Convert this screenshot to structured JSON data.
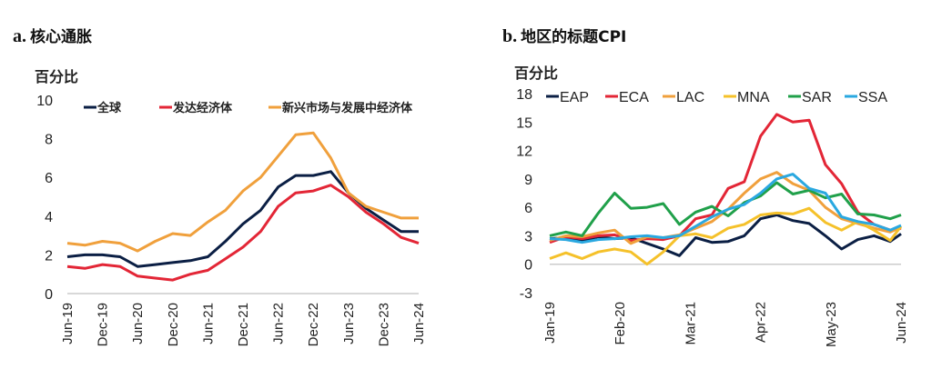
{
  "panels": [
    {
      "letter": "a.",
      "title": "核心通胀"
    },
    {
      "letter": "b.",
      "title": "地区的标题CPI"
    }
  ],
  "chart_data": [
    {
      "type": "line",
      "title": "核心通胀",
      "ylabel": "百分比",
      "ylim": [
        0,
        10
      ],
      "yticks": [
        0,
        2,
        4,
        6,
        8,
        10
      ],
      "xticks": [
        "Jun-19",
        "Dec-19",
        "Jun-20",
        "Dec-20",
        "Jun-21",
        "Dec-21",
        "Jun-22",
        "Dec-22",
        "Jun-23",
        "Dec-23",
        "Jun-24"
      ],
      "x": [
        "Jun-19",
        "Sep-19",
        "Dec-19",
        "Mar-20",
        "Jun-20",
        "Sep-20",
        "Dec-20",
        "Mar-21",
        "Jun-21",
        "Sep-21",
        "Dec-21",
        "Mar-22",
        "Jun-22",
        "Sep-22",
        "Dec-22",
        "Mar-23",
        "Jun-23",
        "Sep-23",
        "Dec-23",
        "Mar-24",
        "Jun-24"
      ],
      "legend": "top",
      "grid": false,
      "series": [
        {
          "name": "全球",
          "color": "#0b1f44",
          "values": [
            1.9,
            2.0,
            2.0,
            1.9,
            1.4,
            1.5,
            1.6,
            1.7,
            1.9,
            2.7,
            3.6,
            4.3,
            5.5,
            6.1,
            6.1,
            6.3,
            5.2,
            4.4,
            3.8,
            3.2,
            3.2
          ]
        },
        {
          "name": "发达经济体",
          "color": "#e32636",
          "values": [
            1.4,
            1.3,
            1.5,
            1.4,
            0.9,
            0.8,
            0.7,
            1.0,
            1.2,
            1.8,
            2.4,
            3.2,
            4.5,
            5.2,
            5.3,
            5.6,
            5.0,
            4.2,
            3.6,
            2.9,
            2.6
          ]
        },
        {
          "name": "新兴市场与发展中经济体",
          "color": "#f0a03c",
          "values": [
            2.6,
            2.5,
            2.7,
            2.6,
            2.2,
            2.7,
            3.1,
            3.0,
            3.7,
            4.3,
            5.3,
            6.0,
            7.1,
            8.2,
            8.3,
            7.0,
            5.2,
            4.5,
            4.2,
            3.9,
            3.9
          ]
        }
      ]
    },
    {
      "type": "line",
      "title": "地区的标题CPI",
      "ylabel": "百分比",
      "ylim": [
        -3,
        18
      ],
      "yticks": [
        -3,
        0,
        3,
        6,
        9,
        12,
        15,
        18
      ],
      "xticks": [
        "Jan-19",
        "Feb-20",
        "Mar-21",
        "Apr-22",
        "May-23",
        "Jun-24"
      ],
      "x": [
        "Jan-19",
        "Apr-19",
        "Jul-19",
        "Oct-19",
        "Jan-20",
        "Apr-20",
        "Jul-20",
        "Oct-20",
        "Jan-21",
        "Apr-21",
        "Jul-21",
        "Oct-21",
        "Jan-22",
        "Apr-22",
        "Jul-22",
        "Oct-22",
        "Jan-23",
        "Apr-23",
        "Jul-23",
        "Oct-23",
        "Jan-24",
        "Apr-24",
        "Jun-24"
      ],
      "legend": "top",
      "grid": false,
      "series": [
        {
          "name": "EAP",
          "color": "#0b1f44",
          "values": [
            2.7,
            2.8,
            2.5,
            2.9,
            2.7,
            2.8,
            2.2,
            1.6,
            0.9,
            2.8,
            2.3,
            2.4,
            3.0,
            4.8,
            5.2,
            4.6,
            4.3,
            3.0,
            1.6,
            2.6,
            3.0,
            2.4,
            3.2
          ]
        },
        {
          "name": "ECA",
          "color": "#e32636",
          "values": [
            2.3,
            2.9,
            2.7,
            3.0,
            3.1,
            2.5,
            2.7,
            2.6,
            3.0,
            4.8,
            5.2,
            8.0,
            8.7,
            13.5,
            15.8,
            15.0,
            15.2,
            10.5,
            8.5,
            5.5,
            4.2,
            3.6,
            3.8
          ]
        },
        {
          "name": "LAC",
          "color": "#f0a03c",
          "values": [
            2.5,
            3.0,
            2.9,
            3.3,
            3.6,
            2.2,
            2.9,
            2.8,
            3.1,
            3.8,
            4.5,
            5.8,
            7.5,
            9.0,
            9.7,
            8.5,
            7.8,
            6.0,
            4.8,
            4.3,
            3.8,
            3.4,
            3.9
          ]
        },
        {
          "name": "MNA",
          "color": "#f5c12a",
          "values": [
            0.6,
            1.2,
            0.6,
            1.3,
            1.6,
            1.3,
            0.0,
            1.3,
            3.0,
            3.2,
            2.8,
            3.8,
            4.2,
            5.2,
            5.4,
            5.3,
            5.9,
            4.4,
            3.6,
            4.5,
            3.6,
            2.5,
            4.0
          ]
        },
        {
          "name": "SAR",
          "color": "#20a04a",
          "values": [
            3.0,
            3.4,
            3.0,
            5.4,
            7.5,
            5.9,
            6.0,
            6.4,
            4.2,
            5.5,
            6.1,
            5.1,
            6.5,
            7.2,
            8.6,
            7.4,
            7.8,
            7.0,
            7.4,
            5.3,
            5.2,
            4.8,
            5.2
          ]
        },
        {
          "name": "SSA",
          "color": "#2aa8e0",
          "values": [
            2.7,
            2.6,
            2.3,
            2.6,
            2.7,
            2.9,
            3.0,
            2.8,
            3.0,
            4.0,
            5.0,
            5.8,
            6.3,
            7.5,
            9.0,
            9.5,
            8.0,
            7.5,
            5.0,
            4.5,
            4.2,
            3.6,
            4.1
          ]
        }
      ]
    }
  ]
}
